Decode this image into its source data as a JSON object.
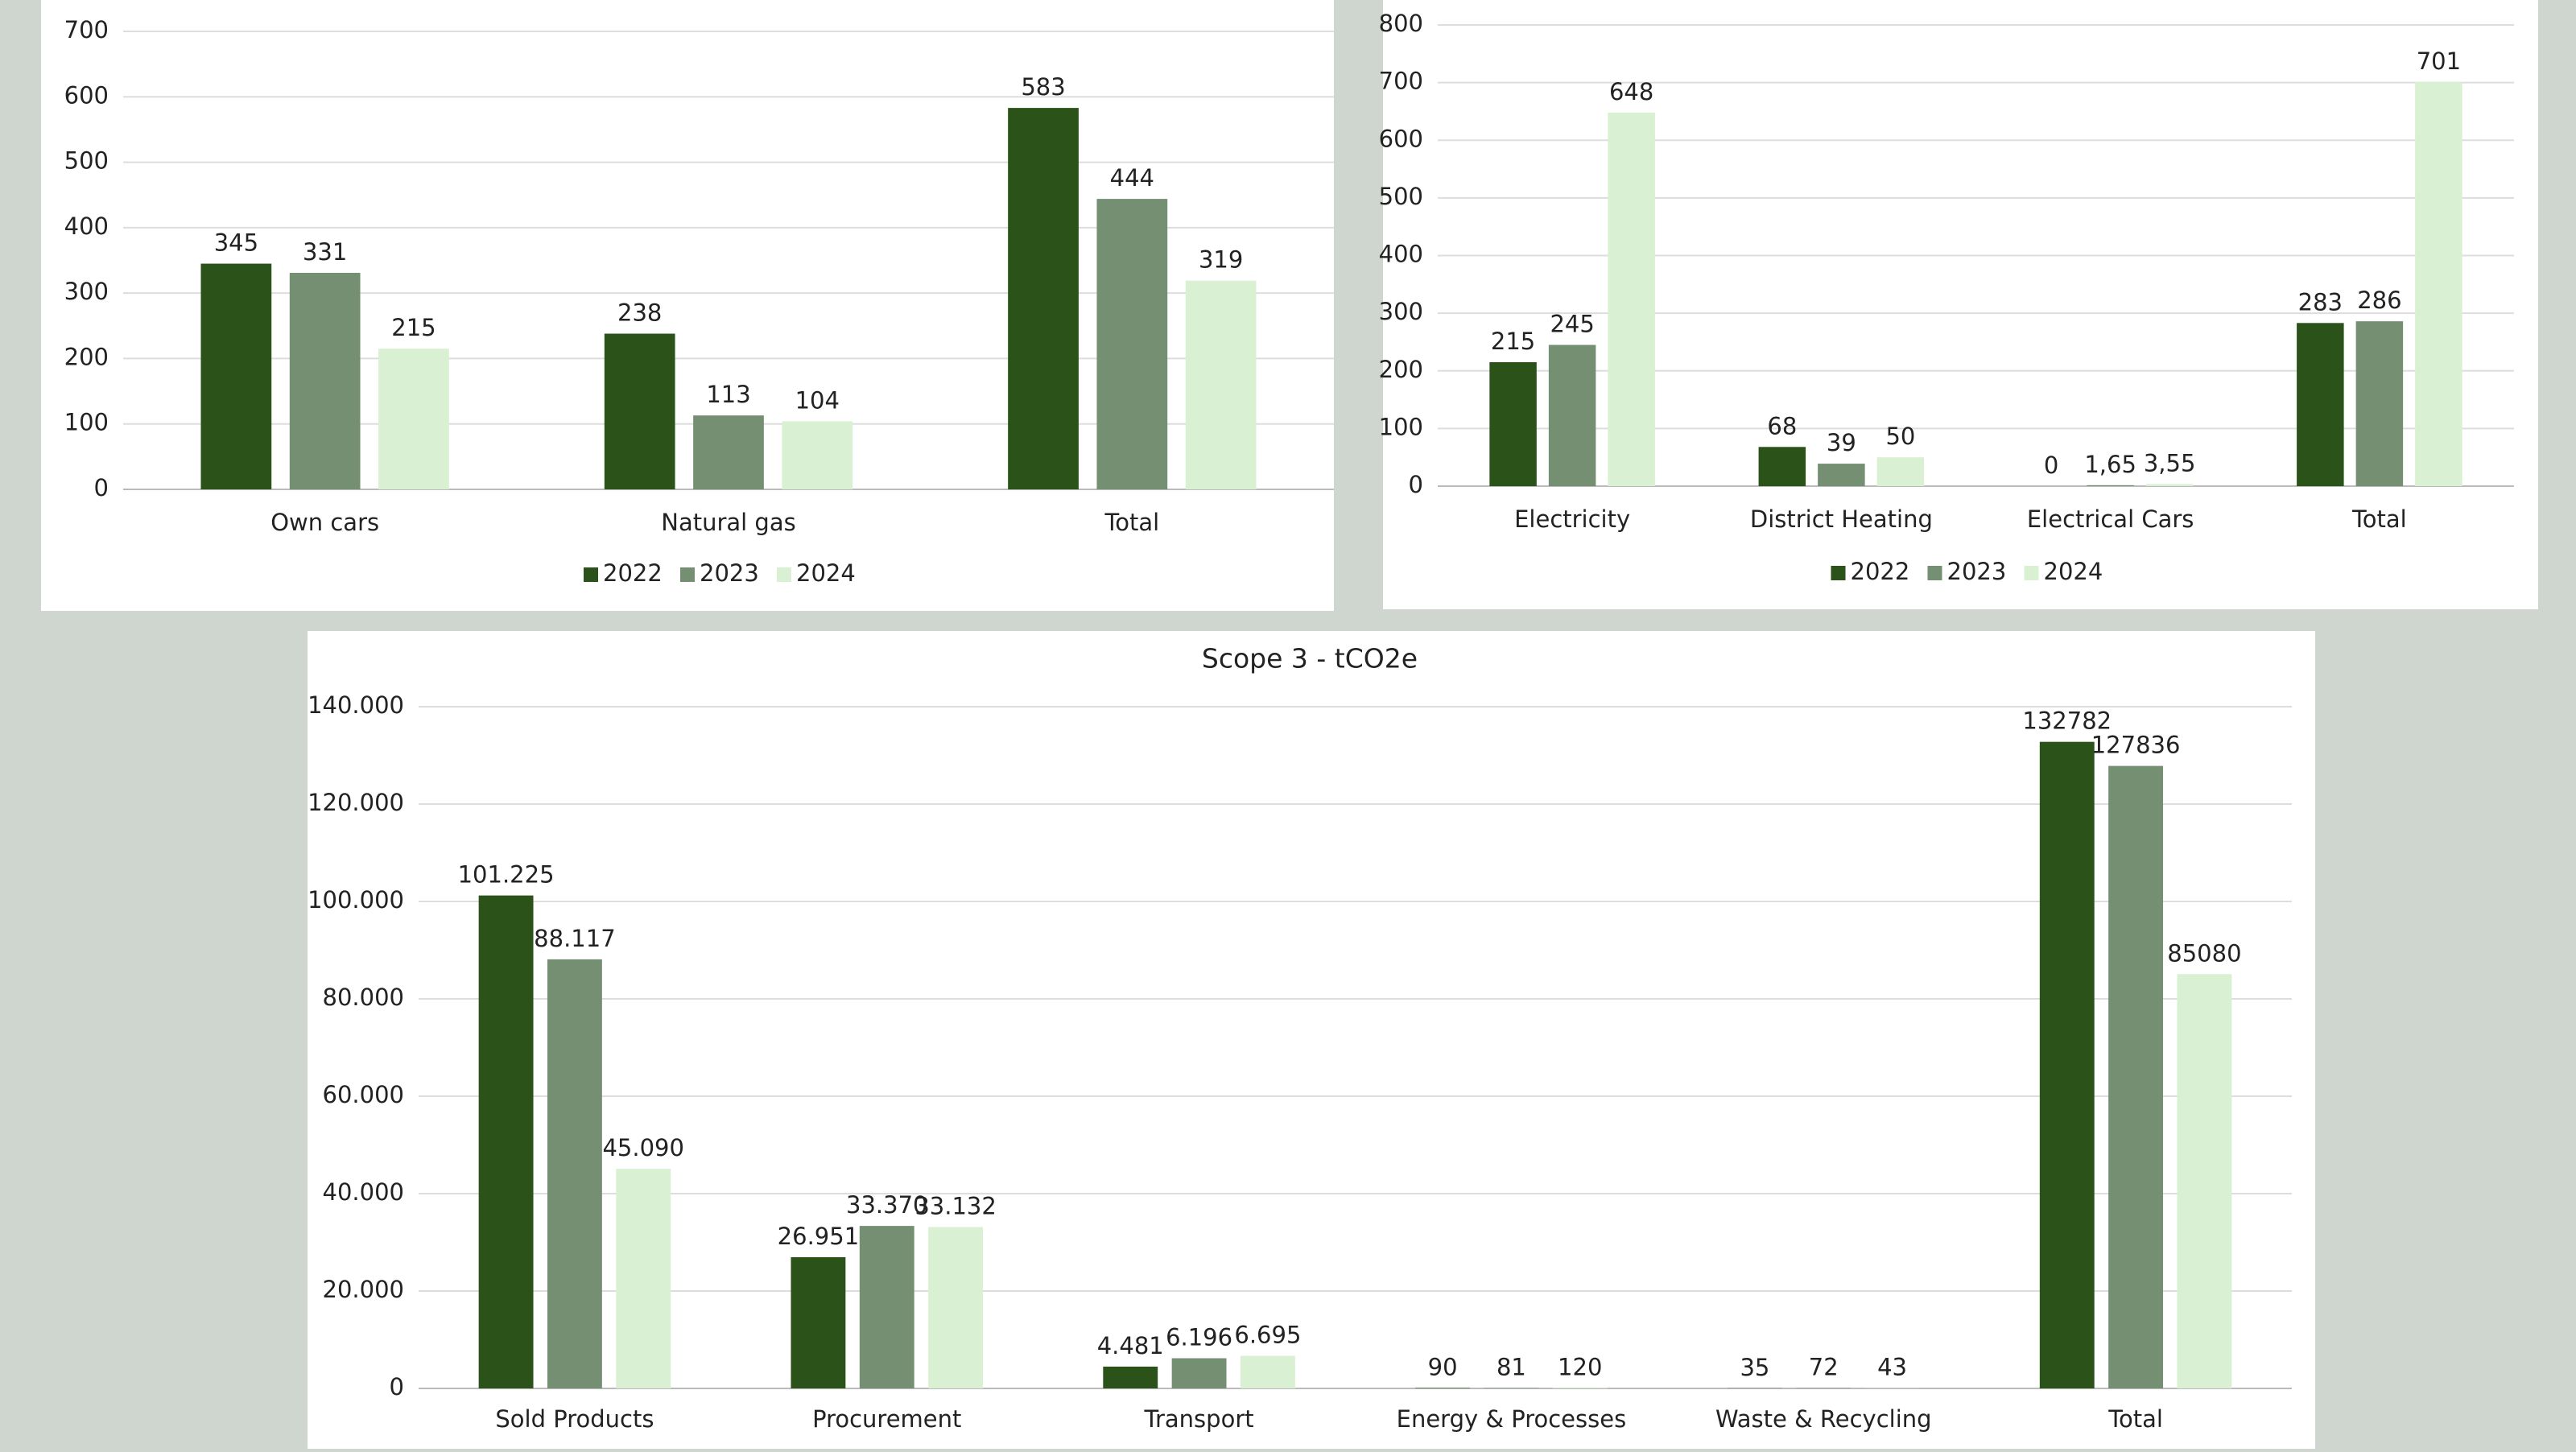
{
  "chart_data": [
    {
      "type": "bar",
      "categories": [
        "Own cars",
        "Natural gas",
        "Total"
      ],
      "series": [
        {
          "name": "2022",
          "color": "#2a5219",
          "values": [
            345,
            238,
            583
          ]
        },
        {
          "name": "2023",
          "color": "#758f73",
          "values": [
            331,
            113,
            444
          ]
        },
        {
          "name": "2024",
          "color": "#d9f0d2",
          "values": [
            215,
            104,
            319
          ]
        }
      ],
      "ylim": [
        0,
        700
      ],
      "yticks": [
        0,
        100,
        200,
        300,
        400,
        500,
        600,
        700
      ],
      "grid": true,
      "legend": "bottom"
    },
    {
      "type": "bar",
      "categories": [
        "Electricity",
        "District Heating",
        "Electrical Cars",
        "Total"
      ],
      "series": [
        {
          "name": "2022",
          "color": "#2a5219",
          "values": [
            215,
            68,
            0,
            283
          ]
        },
        {
          "name": "2023",
          "color": "#758f73",
          "values": [
            245,
            39,
            1.65,
            286
          ],
          "value_labels": [
            "245",
            "39",
            "1,65",
            "286"
          ]
        },
        {
          "name": "2024",
          "color": "#d9f0d2",
          "values": [
            648,
            50,
            3.55,
            701
          ],
          "value_labels": [
            "648",
            "50",
            "3,55",
            "701"
          ]
        }
      ],
      "ylim": [
        0,
        800
      ],
      "yticks": [
        0,
        100,
        200,
        300,
        400,
        500,
        600,
        700,
        800
      ],
      "grid": true,
      "legend": "bottom"
    },
    {
      "type": "bar",
      "title": "Scope 3 - tCO2e",
      "categories": [
        "Sold Products",
        "Procurement",
        "Transport",
        "Energy & Processes",
        "Waste & Recycling",
        "Total"
      ],
      "series": [
        {
          "name": "2022",
          "color": "#2a5219",
          "values": [
            101225,
            26951,
            4481,
            90,
            35,
            132782
          ],
          "value_labels": [
            "101.225",
            "26.951",
            "4.481",
            "90",
            "35",
            "132782"
          ]
        },
        {
          "name": "2023",
          "color": "#758f73",
          "values": [
            88117,
            33370,
            6196,
            81,
            72,
            127836
          ],
          "value_labels": [
            "88.117",
            "33.370",
            "6.196",
            "81",
            "72",
            "127836"
          ]
        },
        {
          "name": "2024",
          "color": "#d9f0d2",
          "values": [
            45090,
            33132,
            6695,
            120,
            43,
            85080
          ],
          "value_labels": [
            "45.090",
            "33.132",
            "6.695",
            "120",
            "43",
            "85080"
          ]
        }
      ],
      "ylim": [
        0,
        140000
      ],
      "yticks": [
        0,
        {
          "value": 20000,
          "label": "20.000"
        },
        {
          "value": 40000,
          "label": "40.000"
        },
        {
          "value": 60000,
          "label": "60.000"
        },
        {
          "value": 80000,
          "label": "80.000"
        },
        {
          "value": 100000,
          "label": "100.000"
        },
        {
          "value": 120000,
          "label": "120.000"
        },
        {
          "value": 140000,
          "label": "140.000"
        }
      ],
      "grid": true
    }
  ]
}
